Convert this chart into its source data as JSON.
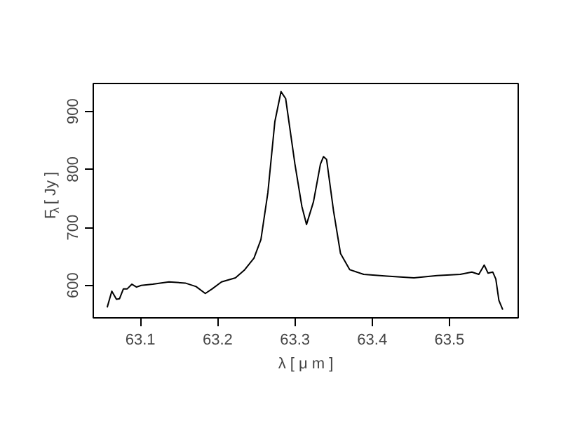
{
  "chart_data": {
    "type": "line",
    "xlabel": "λ [ μ m ]",
    "ylabel": "F$_{λ}$ [ Jy ]",
    "xlim": [
      63.039,
      63.589
    ],
    "ylim": [
      544,
      948
    ],
    "xticks": [
      63.1,
      63.2,
      63.3,
      63.4,
      63.5
    ],
    "yticks": [
      600,
      700,
      800,
      900
    ],
    "grid": false,
    "series": [
      {
        "color": "#000000",
        "x": [
          63.057,
          63.063,
          63.069,
          63.073,
          63.078,
          63.083,
          63.089,
          63.095,
          63.101,
          63.116,
          63.137,
          63.158,
          63.172,
          63.184,
          63.193,
          63.205,
          63.223,
          63.235,
          63.247,
          63.256,
          63.265,
          63.274,
          63.282,
          63.288,
          63.3,
          63.309,
          63.315,
          63.324,
          63.333,
          63.337,
          63.341,
          63.35,
          63.359,
          63.371,
          63.389,
          63.419,
          63.454,
          63.484,
          63.514,
          63.529,
          63.538,
          63.545,
          63.55,
          63.556,
          63.56,
          63.564,
          63.569
        ],
        "values": [
          562,
          590,
          576,
          577,
          594,
          594,
          602,
          597,
          600,
          602,
          606,
          604,
          598,
          586,
          594,
          606,
          613,
          627,
          647,
          679,
          760,
          882,
          934,
          922,
          809,
          736,
          705,
          744,
          809,
          822,
          817,
          728,
          655,
          627,
          619,
          616,
          613,
          617,
          619,
          623,
          619,
          635,
          621,
          623,
          611,
          574,
          558
        ]
      }
    ]
  }
}
